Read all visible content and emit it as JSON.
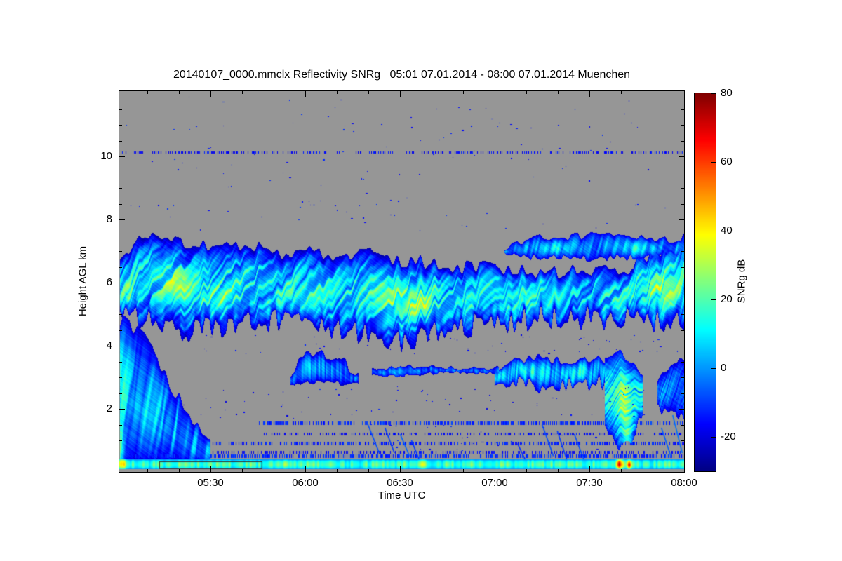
{
  "chart_data": {
    "type": "heatmap",
    "title": "20140107_0000.mmclx Reflectivity SNRg   05:01 07.01.2014 - 08:00 07.01.2014 Muenchen",
    "file": "20140107_0000.mmclx",
    "quantity": "Reflectivity SNRg",
    "time_start": "05:01 07.01.2014",
    "time_end": "08:00 07.01.2014",
    "site": "Muenchen",
    "xlabel": "Time UTC",
    "ylabel": "Height AGL km",
    "axes": {
      "t_min": 5.0167,
      "t_max": 8.0,
      "h_min": 0,
      "h_max": 12.067,
      "x_ticks": [
        {
          "t": 5.5,
          "label": "05:30"
        },
        {
          "t": 6.0,
          "label": "06:00"
        },
        {
          "t": 6.5,
          "label": "06:30"
        },
        {
          "t": 7.0,
          "label": "07:00"
        },
        {
          "t": 7.5,
          "label": "07:30"
        },
        {
          "t": 8.0,
          "label": "08:00"
        }
      ],
      "x_minor_step_h": 0.166667,
      "y_ticks": [
        {
          "h": 2,
          "label": "2"
        },
        {
          "h": 4,
          "label": "4"
        },
        {
          "h": 6,
          "label": "6"
        },
        {
          "h": 8,
          "label": "8"
        },
        {
          "h": 10,
          "label": "10"
        }
      ],
      "y_minor_step_km": 0.5
    },
    "colorbar": {
      "label": "SNRg dB",
      "v_min": -30,
      "v_max": 80,
      "ticks": [
        {
          "v": 80,
          "label": "80"
        },
        {
          "v": 60,
          "label": "60"
        },
        {
          "v": 40,
          "label": "40"
        },
        {
          "v": 20,
          "label": "20"
        },
        {
          "v": 0,
          "label": "0"
        },
        {
          "v": -20,
          "label": "-20"
        }
      ]
    },
    "colors": {
      "background": "#ffffff",
      "nodata": "#969696",
      "frame": "#000000",
      "colormap_stops": [
        [
          0.0,
          "#000083"
        ],
        [
          0.125,
          "#0000ff"
        ],
        [
          0.375,
          "#00ffff"
        ],
        [
          0.625,
          "#ffff00"
        ],
        [
          0.875,
          "#ff0000"
        ],
        [
          1.0,
          "#7f0000"
        ]
      ]
    },
    "features": {
      "clouds": [
        {
          "name": "mid-level cloud deck 4.2-7.5 km spanning full period",
          "seed": 1,
          "I": 26,
          "edge": -25,
          "tf": 60,
          "sl": 8,
          "jt": 0.5,
          "jb": 0.8,
          "t": [
            5.02,
            5.15,
            5.35,
            5.6,
            5.85,
            6.1,
            6.35,
            6.55,
            6.75,
            7.0,
            7.2,
            7.45,
            7.7,
            7.85,
            8.0
          ],
          "top": [
            6.6,
            7.5,
            7.3,
            7.15,
            7.0,
            6.9,
            6.9,
            6.7,
            6.5,
            6.45,
            6.4,
            6.35,
            6.5,
            6.9,
            7.4
          ],
          "base": [
            5.3,
            4.8,
            4.5,
            4.6,
            4.8,
            4.5,
            4.3,
            4.15,
            4.5,
            4.7,
            4.85,
            4.9,
            4.8,
            4.75,
            4.7
          ],
          "p": [
            {
              "t": 5.33,
              "h": 5.9,
              "rt": 0.1,
              "rh": 0.55,
              "a": 16
            },
            {
              "t": 5.55,
              "h": 5.5,
              "rt": 0.12,
              "rh": 0.45,
              "a": 14
            },
            {
              "t": 5.95,
              "h": 5.4,
              "rt": 0.1,
              "rh": 0.5,
              "a": 10
            },
            {
              "t": 6.5,
              "h": 5.5,
              "rt": 0.14,
              "rh": 0.6,
              "a": 16
            },
            {
              "t": 6.62,
              "h": 5.2,
              "rt": 0.06,
              "rh": 0.35,
              "a": 12
            },
            {
              "t": 7.9,
              "h": 5.8,
              "rt": 0.12,
              "rh": 0.7,
              "a": 16
            },
            {
              "t": 5.06,
              "h": 5.6,
              "rt": 0.04,
              "rh": 0.6,
              "a": 12
            }
          ]
        },
        {
          "name": "upper cloud band 6.8-7.5 km 07:05-08:00",
          "seed": 2,
          "I": 10,
          "edge": -22,
          "tf": 90,
          "sl": 4,
          "jt": 0.25,
          "jb": 0.2,
          "t": [
            7.05,
            7.2,
            7.5,
            7.8,
            8.0
          ],
          "top": [
            7.1,
            7.4,
            7.5,
            7.4,
            7.3
          ],
          "base": [
            6.85,
            6.8,
            6.75,
            6.8,
            6.9
          ],
          "p": [
            {
              "t": 7.3,
              "h": 7.1,
              "rt": 0.09,
              "rh": 0.2,
              "a": 9
            },
            {
              "t": 7.75,
              "h": 7.1,
              "rt": 0.09,
              "rh": 0.22,
              "a": 9
            }
          ]
        },
        {
          "name": "low-level cloud/precip 0.3-4.7 km at start 05:01-05:30",
          "seed": 3,
          "I": 14,
          "edge": -22,
          "tf": 90,
          "sl": 2,
          "jt": 0.5,
          "jb": 0.1,
          "t": [
            5.02,
            5.08,
            5.15,
            5.22,
            5.3,
            5.4,
            5.5
          ],
          "top": [
            4.8,
            4.6,
            4.2,
            3.6,
            2.6,
            1.8,
            0.9
          ],
          "base": [
            0.2,
            0.25,
            0.3,
            0.3,
            0.3,
            0.3,
            0.3
          ],
          "p": [
            {
              "t": 5.03,
              "h": 3.0,
              "rt": 0.03,
              "rh": 1.5,
              "a": 12
            },
            {
              "t": 5.02,
              "h": 0.7,
              "rt": 0.025,
              "rh": 0.6,
              "a": 30
            },
            {
              "t": 5.12,
              "h": 2.0,
              "rt": 0.05,
              "rh": 0.8,
              "a": 8
            }
          ]
        },
        {
          "name": "mid-level scattered cloud ~06:00 2.8-3.8 km",
          "seed": 4,
          "I": 7,
          "edge": -24,
          "tf": 150,
          "sl": 0,
          "jt": 0.35,
          "jb": 0.15,
          "t": [
            5.92,
            6.0,
            6.1,
            6.2,
            6.28
          ],
          "top": [
            3.0,
            3.8,
            3.7,
            3.5,
            3.0
          ],
          "base": [
            2.8,
            2.8,
            2.85,
            2.8,
            2.8
          ],
          "p": [
            {
              "t": 6.05,
              "h": 3.3,
              "rt": 0.06,
              "rh": 0.4,
              "a": 8
            }
          ]
        },
        {
          "name": "thin mid-level band ~3.2 km 06:20-07:00",
          "seed": 5,
          "I": 3,
          "edge": -24,
          "tf": 120,
          "sl": 0,
          "jt": 0.12,
          "jb": 0.1,
          "t": [
            6.35,
            6.5,
            6.6,
            6.8,
            7.02
          ],
          "top": [
            3.25,
            3.35,
            3.35,
            3.3,
            3.3
          ],
          "base": [
            3.05,
            3.05,
            3.1,
            3.15,
            3.1
          ],
          "p": [
            {
              "t": 6.47,
              "h": 3.15,
              "rt": 0.05,
              "rh": 0.22,
              "a": 9
            }
          ]
        },
        {
          "name": "mid-level cloud 07:00-07:37 2.7-3.6 km",
          "seed": 6,
          "I": 13,
          "edge": -23,
          "tf": 140,
          "sl": 2,
          "jt": 0.3,
          "jb": 0.5,
          "t": [
            7.0,
            7.1,
            7.25,
            7.4,
            7.55,
            7.62
          ],
          "top": [
            3.3,
            3.55,
            3.6,
            3.5,
            3.6,
            3.2
          ],
          "base": [
            2.9,
            2.8,
            2.7,
            2.75,
            2.8,
            2.9
          ],
          "p": [
            {
              "t": 7.2,
              "h": 3.2,
              "rt": 0.08,
              "rh": 0.3,
              "a": 10
            },
            {
              "t": 7.45,
              "h": 3.1,
              "rt": 0.06,
              "rh": 0.35,
              "a": 10
            }
          ]
        },
        {
          "name": "bright precip fall streak ~07:40 3.8 down to 0.8 km",
          "seed": 7,
          "I": 26,
          "edge": -20,
          "tf": 100,
          "sl": 15,
          "jt": 0.2,
          "jb": 0.3,
          "t": [
            7.58,
            7.66,
            7.72,
            7.78
          ],
          "top": [
            3.7,
            3.8,
            3.5,
            3.0
          ],
          "base": [
            1.4,
            0.8,
            1.0,
            1.9
          ],
          "p": [
            {
              "t": 7.68,
              "h": 2.3,
              "rt": 0.03,
              "rh": 1.1,
              "a": 16
            },
            {
              "t": 7.7,
              "h": 0.9,
              "rt": 0.025,
              "rh": 0.7,
              "a": 30
            }
          ]
        },
        {
          "name": "low cloud streaks 1.7-3.5 km near 08:00",
          "seed": 8,
          "I": 8,
          "edge": -22,
          "tf": 140,
          "sl": 10,
          "jt": 0.3,
          "jb": 0.3,
          "t": [
            7.86,
            7.94,
            8.0
          ],
          "top": [
            3.0,
            3.4,
            3.5
          ],
          "base": [
            2.0,
            1.8,
            1.7
          ],
          "p": []
        }
      ],
      "surface": {
        "name": "near-surface echo layer ~0.25 km full width",
        "h": 0.24,
        "hw": 0.16,
        "base": 10,
        "amp": 22,
        "tf": 90,
        "p": [
          {
            "t": 5.03,
            "h": 0.3,
            "rt": 0.02,
            "rh": 0.3,
            "a": 26
          },
          {
            "t": 7.66,
            "h": 0.25,
            "rt": 0.015,
            "rh": 0.2,
            "a": 46
          },
          {
            "t": 7.71,
            "h": 0.22,
            "rt": 0.01,
            "rh": 0.15,
            "a": 38
          },
          {
            "t": 6.62,
            "h": 0.25,
            "rt": 0.012,
            "rh": 0.15,
            "a": 16
          },
          {
            "t": 5.9,
            "h": 0.25,
            "rt": 0.01,
            "rh": 0.12,
            "a": 14
          }
        ]
      },
      "speckle_lines": [
        {
          "h": 0.5,
          "t0": 5.05,
          "prob": 0.5,
          "v": -12,
          "th": 0.05,
          "f": 480
        },
        {
          "h": 0.62,
          "t0": 5.3,
          "prob": 0.3,
          "v": -16,
          "th": 0.04,
          "f": 480
        },
        {
          "h": 0.9,
          "t0": 5.45,
          "prob": 0.38,
          "v": -13,
          "th": 0.045,
          "f": 420
        },
        {
          "h": 1.2,
          "t0": 5.78,
          "prob": 0.3,
          "v": -16,
          "th": 0.04,
          "f": 480
        },
        {
          "h": 1.55,
          "t0": 5.75,
          "prob": 0.45,
          "v": -12,
          "th": 0.05,
          "f": 360
        },
        {
          "h": 10.12,
          "t0": 5.02,
          "prob": 0.3,
          "v": -16,
          "th": 0.04,
          "f": 420
        }
      ],
      "specks": [
        {
          "name": "scattered specks upper troposphere",
          "n": 130,
          "t0": 5.05,
          "t1": 8.0,
          "h0": 7.6,
          "h1": 11.9,
          "v": -14,
          "seed": 21
        },
        {
          "name": "specks 1.7-2.7 km",
          "n": 70,
          "t0": 5.35,
          "t1": 8.0,
          "h0": 1.7,
          "h1": 2.7,
          "v": -16,
          "seed": 22
        },
        {
          "name": "specks just below deck",
          "n": 60,
          "t0": 5.45,
          "t1": 8.0,
          "h0": 3.7,
          "h1": 4.35,
          "v": -16,
          "seed": 23
        },
        {
          "name": "specks 0.6-1.5 km",
          "n": 40,
          "t0": 6.3,
          "t1": 7.6,
          "h0": 0.6,
          "h1": 1.5,
          "v": -15,
          "seed": 24
        }
      ],
      "streaks": [
        {
          "t": 6.33,
          "h": 1.5,
          "dt": 0.06,
          "dh": -0.9,
          "v": -8
        },
        {
          "t": 6.42,
          "h": 1.4,
          "dt": 0.05,
          "dh": -0.8,
          "v": -10
        },
        {
          "t": 6.5,
          "h": 1.2,
          "dt": 0.05,
          "dh": -0.7,
          "v": -6
        },
        {
          "t": 6.56,
          "h": 1.0,
          "dt": 0.04,
          "dh": -0.6,
          "v": -10
        },
        {
          "t": 7.25,
          "h": 1.5,
          "dt": 0.06,
          "dh": -1.0,
          "v": -8
        },
        {
          "t": 7.33,
          "h": 1.3,
          "dt": 0.05,
          "dh": -0.9,
          "v": -10
        },
        {
          "t": 7.42,
          "h": 1.2,
          "dt": 0.05,
          "dh": -0.8,
          "v": -8
        },
        {
          "t": 7.12,
          "h": 0.9,
          "dt": 0.04,
          "dh": -0.5,
          "v": -12
        },
        {
          "t": 7.88,
          "h": 1.4,
          "dt": 0.05,
          "dh": -0.9,
          "v": -6
        },
        {
          "t": 7.94,
          "h": 1.8,
          "dt": 0.05,
          "dh": -1.2,
          "v": -4
        }
      ],
      "annotation_box": {
        "name": "thin box outline near surface 05:15-05:45",
        "t0": 5.23,
        "t1": 5.77,
        "h0": 0.11,
        "h1": 0.33,
        "color": "#303030"
      }
    }
  }
}
